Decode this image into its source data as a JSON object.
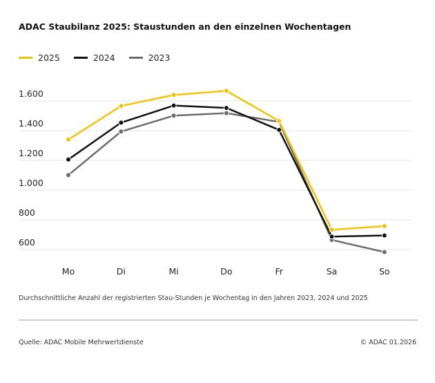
{
  "chart_data": {
    "type": "line",
    "title": "ADAC Staubilanz 2025: Staustunden an den einzelnen Wochentagen",
    "categories": [
      "Mo",
      "Di",
      "Mi",
      "Do",
      "Fr",
      "Sa",
      "So"
    ],
    "yticks": [
      600,
      800,
      1000,
      1200,
      1400,
      1600
    ],
    "ytick_labels": [
      "600",
      "800",
      "1.000",
      "1.200",
      "1.400",
      "1.600"
    ],
    "ylim": [
      560,
      1700
    ],
    "grid": true,
    "legend_position": "top-left",
    "series": [
      {
        "name": "2025",
        "color": "#f2c300",
        "values": [
          1340,
          1566,
          1640,
          1668,
          1465,
          733,
          758
        ]
      },
      {
        "name": "2024",
        "color": "#111111",
        "values": [
          1206,
          1454,
          1569,
          1553,
          1405,
          687,
          695
        ]
      },
      {
        "name": "2023",
        "color": "#6b6b6b",
        "values": [
          1101,
          1394,
          1501,
          1518,
          1459,
          665,
          583
        ]
      }
    ]
  },
  "caption": "Durchschnittliche Anzahl der registrierten Stau-Stunden je Wochentag in den Jahren 2023, 2024 und 2025",
  "source": "Quelle: ADAC Mobile Mehrwertdienste",
  "copyright": "© ADAC 01.2026"
}
